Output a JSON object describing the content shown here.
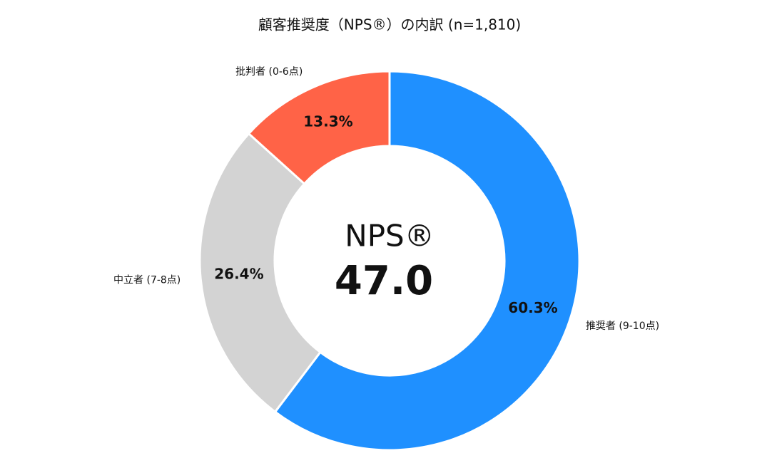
{
  "chart_data": {
    "type": "donut",
    "title": "顧客推奨度（NPS®）の内訳 (n=1,810)",
    "categories": [
      "推奨者 (9-10点)",
      "中立者 (7-8点)",
      "批判者 (0-6点)"
    ],
    "values": [
      60.3,
      26.4,
      13.3
    ],
    "value_labels": [
      "60.3%",
      "26.4%",
      "13.3%"
    ],
    "colors": [
      "#1f90ff",
      "#d3d3d3",
      "#ff6347"
    ],
    "center_label": "NPS®",
    "center_value": {
      "value": 47,
      "label": "47.0"
    }
  }
}
